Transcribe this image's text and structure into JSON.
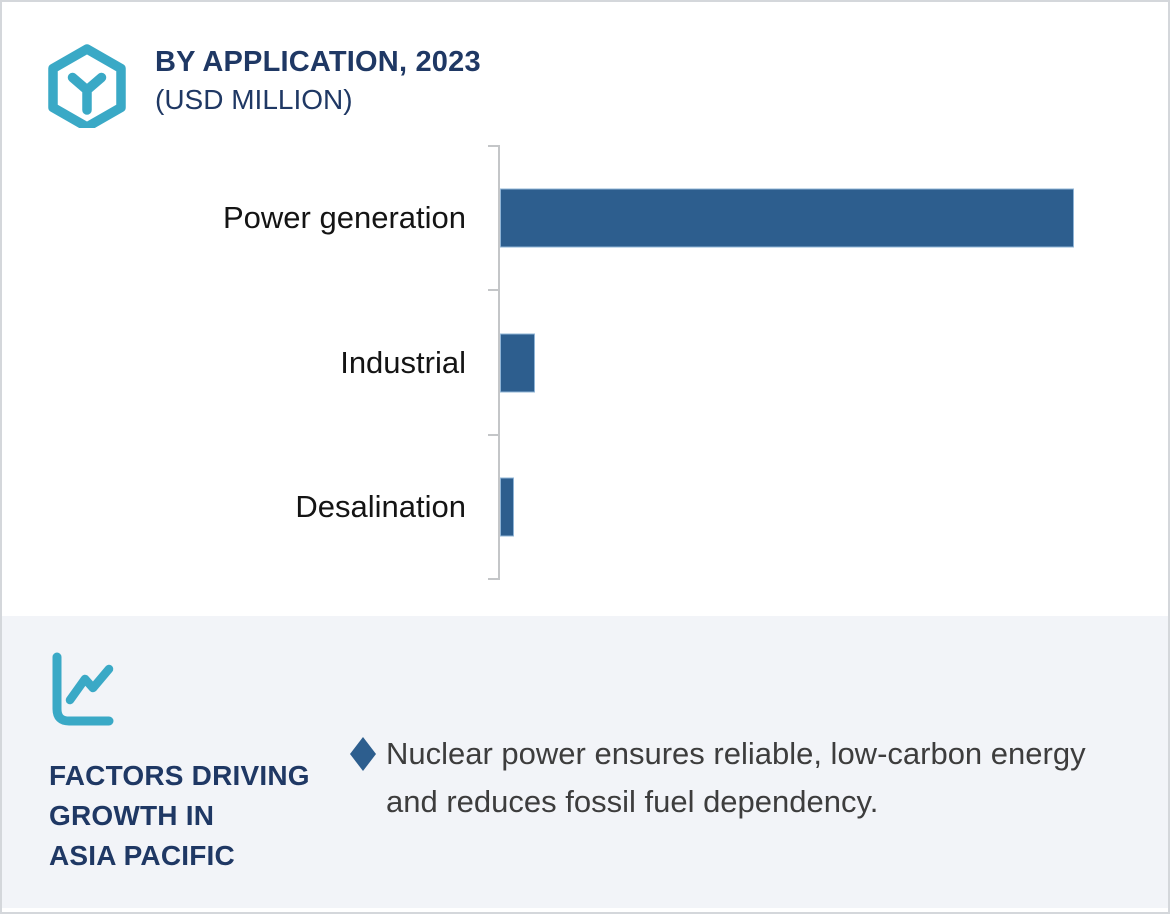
{
  "header": {
    "title_line1": "BY APPLICATION, 2023",
    "title_line2": "(USD MILLION)",
    "logo_icon": "hexagon-cube-icon"
  },
  "chart_data": {
    "type": "bar",
    "orientation": "horizontal",
    "title": "BY APPLICATION, 2023 (USD MILLION)",
    "xlabel": "",
    "ylabel": "",
    "categories": [
      "Power generation",
      "Industrial",
      "Desalination"
    ],
    "values_pct_of_max": [
      100,
      6.1,
      2.4
    ],
    "value_axis_labeled": false,
    "value_labels_shown": false,
    "grid": false,
    "legend": false,
    "bar_color": "#2d5e8e",
    "bar_edge_color": "#8fb4d6",
    "axis_color": "#c4c6c8"
  },
  "factors_panel": {
    "icon": "line-chart-icon",
    "heading_lines": [
      "FACTORS DRIVING",
      "GROWTH IN",
      "ASIA PACIFIC"
    ],
    "bullets": [
      {
        "marker": "diamond",
        "text": "Nuclear power ensures reliable, low-carbon energy and reduces fossil fuel dependency."
      }
    ]
  },
  "colors": {
    "accent_teal": "#3aa9c6",
    "navy": "#1f3864",
    "bar_blue": "#2d5e8e",
    "panel_bg": "#f2f4f8",
    "body_text": "#3d3d3d",
    "border": "#d4d7db"
  }
}
